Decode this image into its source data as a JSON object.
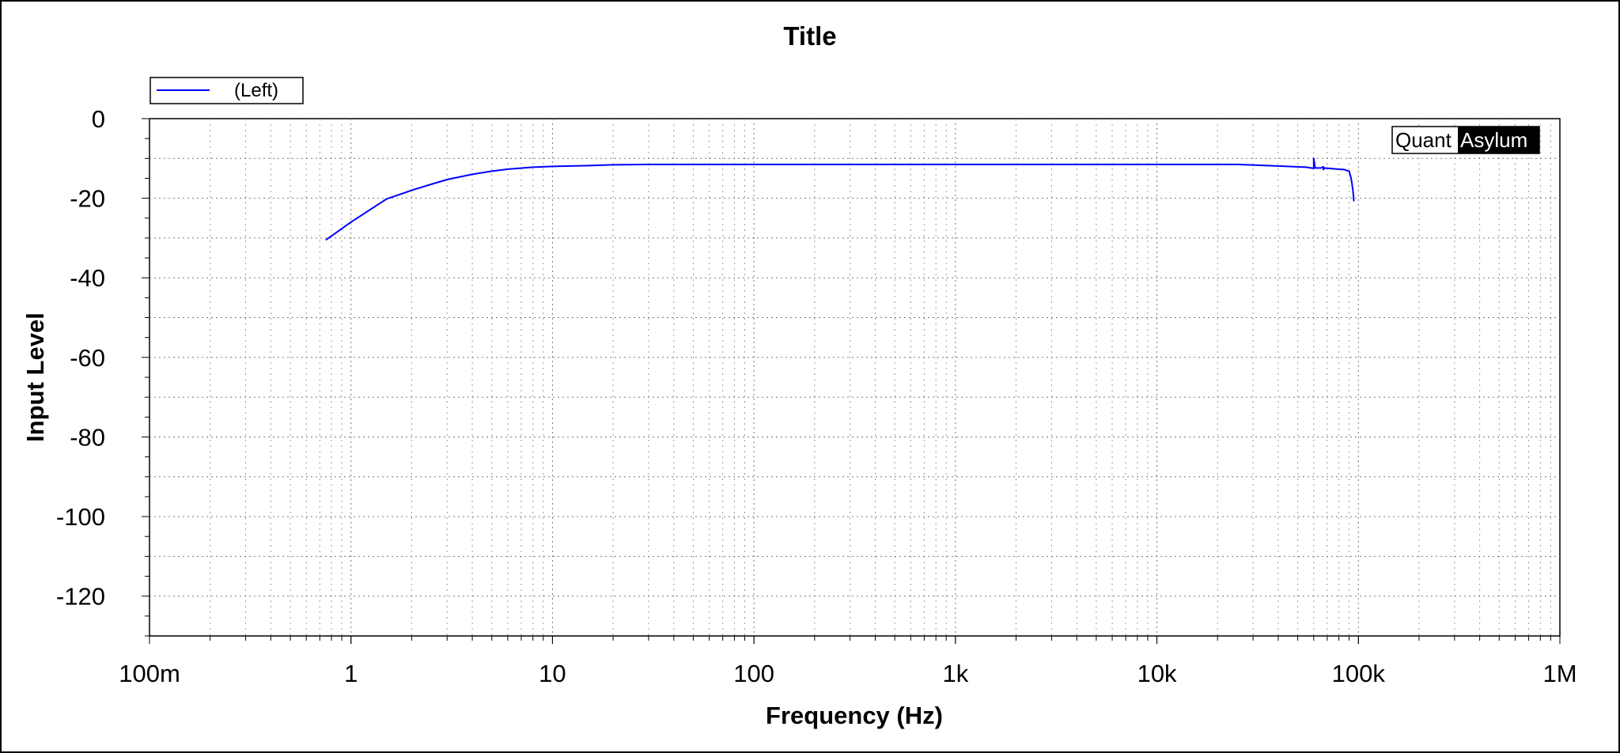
{
  "chart_data": {
    "type": "line",
    "title": "Title",
    "xlabel": "Frequency (Hz)",
    "ylabel": "Input Level",
    "x_scale": "log",
    "xlim": [
      0.1,
      1000000
    ],
    "ylim": [
      -130,
      0
    ],
    "x_ticks": [
      {
        "value": 0.1,
        "label": "100m"
      },
      {
        "value": 1,
        "label": "1"
      },
      {
        "value": 10,
        "label": "10"
      },
      {
        "value": 100,
        "label": "100"
      },
      {
        "value": 1000,
        "label": "1k"
      },
      {
        "value": 10000,
        "label": "10k"
      },
      {
        "value": 100000,
        "label": "100k"
      },
      {
        "value": 1000000,
        "label": "1M"
      }
    ],
    "y_ticks": [
      {
        "value": 0,
        "label": "0"
      },
      {
        "value": -20,
        "label": "-20"
      },
      {
        "value": -40,
        "label": "-40"
      },
      {
        "value": -60,
        "label": "-60"
      },
      {
        "value": -80,
        "label": "-80"
      },
      {
        "value": -100,
        "label": "-100"
      },
      {
        "value": -120,
        "label": "-120"
      }
    ],
    "grid": true,
    "legend_position": "top-left",
    "series": [
      {
        "name": "(Left)",
        "color": "#0000ff",
        "x": [
          0.75,
          1.0,
          1.5,
          2.0,
          2.5,
          3.0,
          4.0,
          5.0,
          6.0,
          8.0,
          10,
          15,
          20,
          30,
          100,
          1000,
          10000,
          25000,
          40000,
          55000,
          60000,
          60000,
          61000,
          65000,
          67000,
          67000,
          68000,
          75000,
          85000,
          90000,
          92000,
          94000,
          95000
        ],
        "y": [
          -30.5,
          -26,
          -20.2,
          -18,
          -16.5,
          -15.3,
          -14,
          -13.2,
          -12.7,
          -12.2,
          -12.0,
          -11.8,
          -11.6,
          -11.5,
          -11.5,
          -11.5,
          -11.5,
          -11.5,
          -11.9,
          -12.2,
          -12.5,
          -10.0,
          -12.4,
          -12.4,
          -12.1,
          -12.8,
          -12.4,
          -12.6,
          -12.8,
          -13.2,
          -15.0,
          -18.0,
          -20.8
        ]
      }
    ]
  },
  "legend": {
    "label": "(Left)",
    "line_color": "#0000ff"
  },
  "watermark": {
    "part1": "Quant",
    "part2": "Asylum"
  }
}
